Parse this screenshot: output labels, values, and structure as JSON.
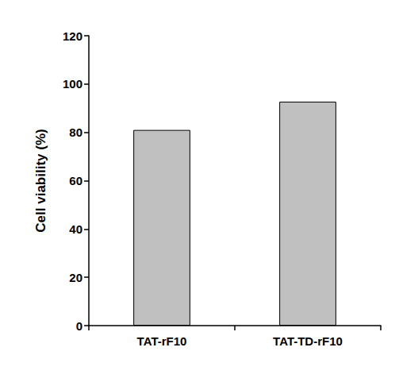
{
  "chart_data": {
    "type": "bar",
    "y_label": "Cell viability (%)",
    "categories": [
      "TAT-rF10",
      "TAT-TD-rF10"
    ],
    "values": [
      81,
      92.7
    ],
    "color": "#c0c0c0",
    "ylim": [
      0,
      120
    ],
    "yticks": [
      0,
      20,
      40,
      60,
      80,
      100,
      120
    ],
    "grid": false
  }
}
